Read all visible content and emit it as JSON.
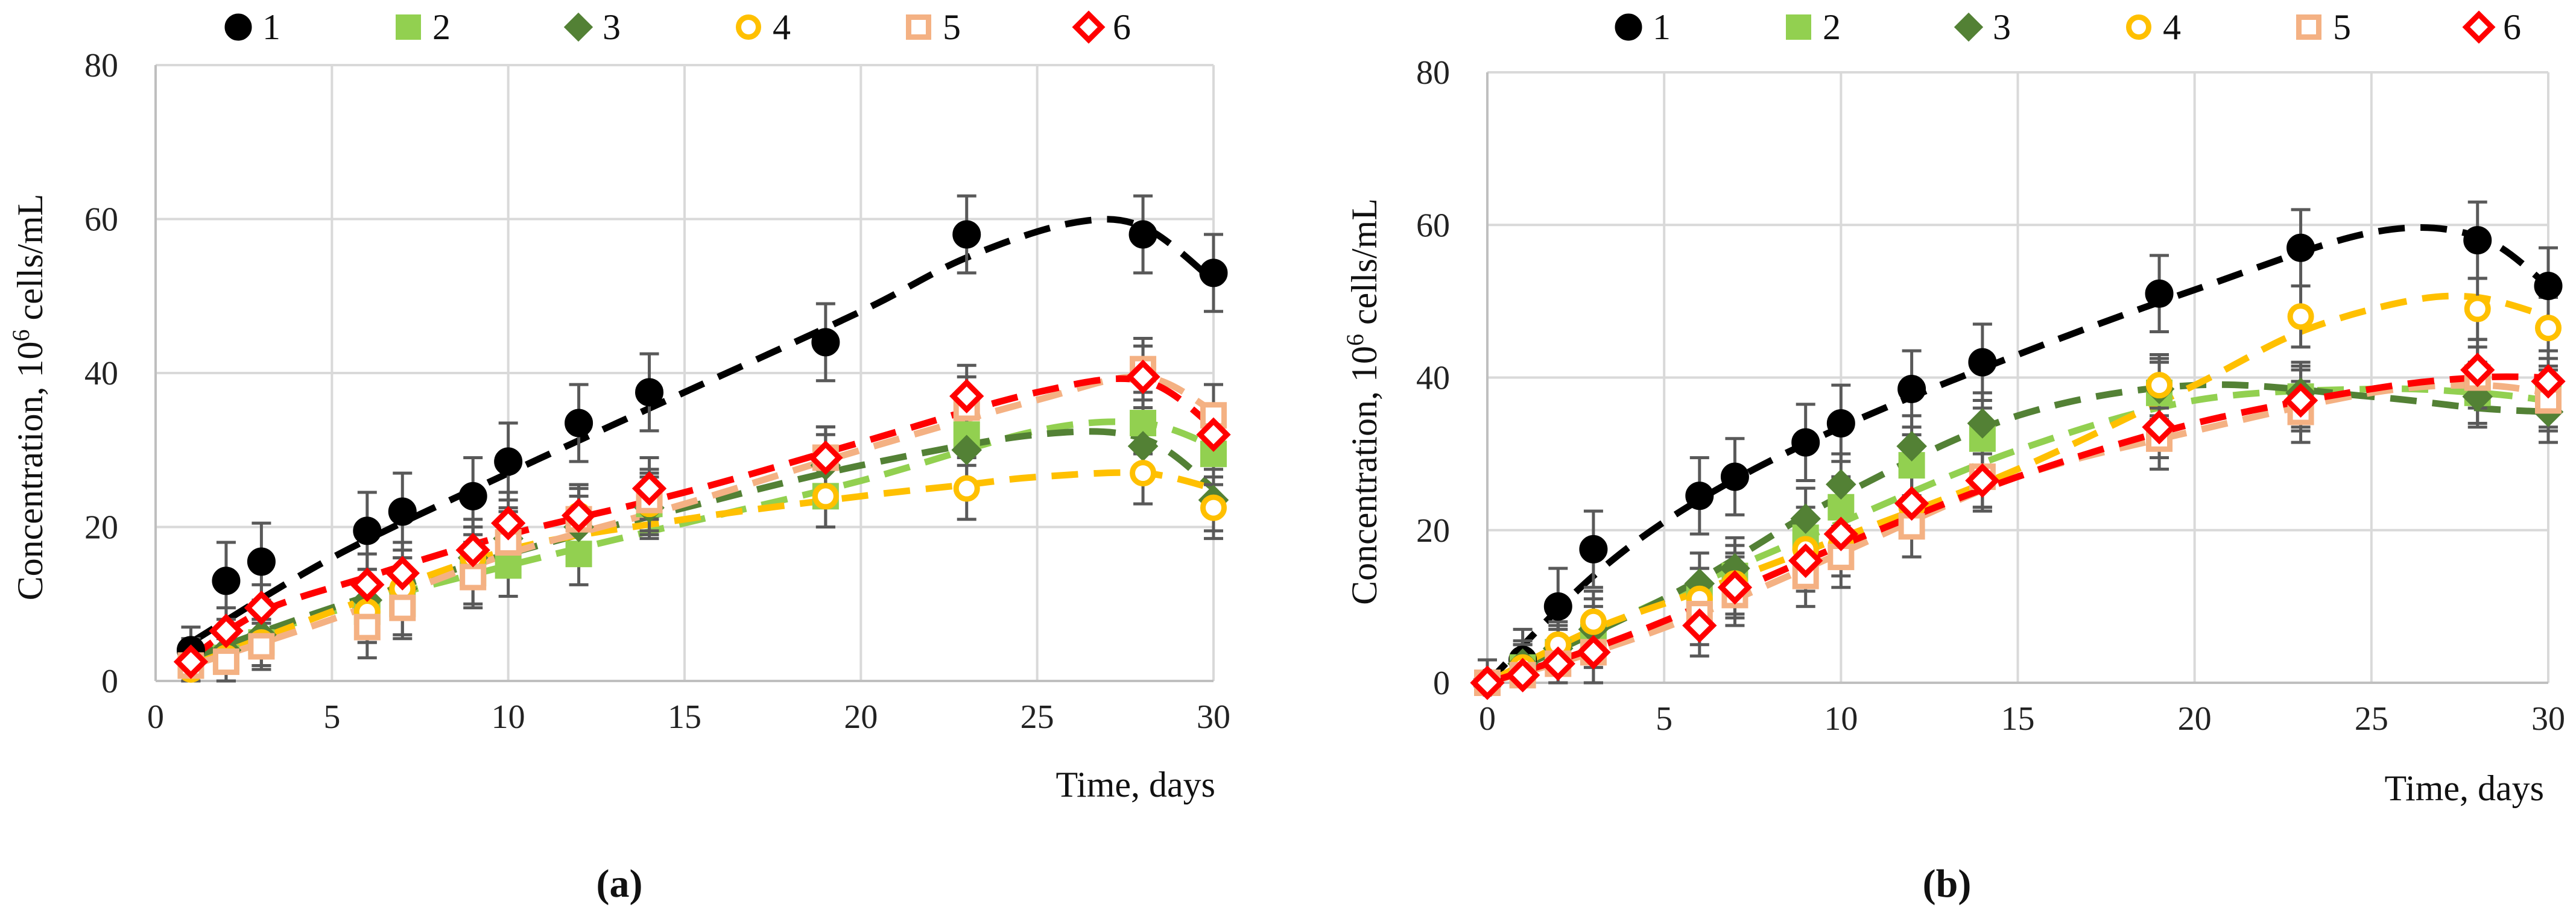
{
  "figure": {
    "panel_labels": [
      "(a)",
      "(b)"
    ]
  },
  "series_styles": [
    {
      "name": "1",
      "marker": "circle-filled",
      "color": "#000000",
      "fit_color": "#000000"
    },
    {
      "name": "2",
      "marker": "square-filled",
      "color": "#92d050",
      "fit_color": "#92d050"
    },
    {
      "name": "3",
      "marker": "diamond-filled",
      "color": "#538135",
      "fit_color": "#538135"
    },
    {
      "name": "4",
      "marker": "circle-open",
      "color": "#ffc000",
      "fit_color": "#ffc000"
    },
    {
      "name": "5",
      "marker": "square-open",
      "color": "#f4b183",
      "fit_color": "#f4b183"
    },
    {
      "name": "6",
      "marker": "diamond-open",
      "color": "#ff0000",
      "fit_color": "#ff0000"
    }
  ],
  "chart_data": [
    {
      "type": "scatter",
      "panel": "(a)",
      "title": "",
      "xlabel": "Time, days",
      "ylabel_prefix": "Concentration, 10",
      "ylabel_sup": "6",
      "ylabel_suffix": " cells/mL",
      "xlim": [
        0,
        30
      ],
      "ylim": [
        0,
        80
      ],
      "xticks": [
        0,
        5,
        10,
        15,
        20,
        25,
        30
      ],
      "yticks": [
        0,
        20,
        40,
        60,
        80
      ],
      "grid": true,
      "legend_position": "top",
      "x": [
        1,
        2,
        3,
        6,
        7,
        9,
        10,
        12,
        14,
        19,
        23,
        28,
        30
      ],
      "series": [
        {
          "name": "1",
          "values": [
            4,
            13,
            15.5,
            19.5,
            22,
            24,
            28.5,
            33.5,
            37.5,
            44,
            58,
            58,
            53
          ],
          "errors": [
            3,
            5,
            5,
            5,
            5,
            5,
            5,
            5,
            5,
            5,
            5,
            5,
            5
          ],
          "fit_x": [
            1,
            5,
            10,
            15,
            20,
            23,
            26,
            28,
            30
          ],
          "fit_y": [
            5,
            16,
            27,
            37.5,
            48,
            55,
            59.5,
            59,
            52
          ]
        },
        {
          "name": "2",
          "values": [
            2,
            3,
            5,
            9,
            10,
            14,
            15,
            16.5,
            23,
            24,
            32,
            33.5,
            29.5
          ],
          "errors": [
            3,
            3,
            3,
            4,
            4,
            4,
            4,
            4,
            4,
            4,
            4,
            4,
            4
          ],
          "fit_x": [
            1,
            5,
            10,
            15,
            20,
            25,
            28,
            30
          ],
          "fit_y": [
            3,
            9,
            15,
            20.5,
            26,
            32.5,
            33.5,
            30.5
          ]
        },
        {
          "name": "3",
          "values": [
            2.5,
            4,
            6,
            10.5,
            12,
            16,
            18.5,
            20,
            22.5,
            28,
            30,
            30.5,
            23.5
          ],
          "errors": [
            3,
            3,
            3,
            4,
            4,
            4,
            4,
            4,
            4,
            4,
            4,
            4,
            4
          ],
          "fit_x": [
            1,
            5,
            10,
            15,
            20,
            25,
            28,
            30
          ],
          "fit_y": [
            3,
            9.5,
            16.5,
            22.5,
            28,
            32,
            31.5,
            25
          ]
        },
        {
          "name": "4",
          "values": [
            1.5,
            3,
            5,
            9,
            12,
            16,
            18,
            21.5,
            23,
            24,
            25,
            27,
            22.5
          ],
          "errors": [
            3,
            3,
            3,
            4,
            4,
            4,
            4,
            4,
            4,
            4,
            4,
            4,
            4
          ],
          "fit_x": [
            1,
            5,
            10,
            15,
            20,
            23,
            25,
            28,
            30
          ],
          "fit_y": [
            2,
            9,
            17,
            21,
            24,
            25.5,
            26.5,
            27,
            25
          ]
        },
        {
          "name": "5",
          "values": [
            2,
            2.5,
            4.5,
            7,
            9.5,
            13.5,
            18,
            21,
            23.5,
            29,
            35.5,
            40.5,
            34.5
          ],
          "errors": [
            3,
            3,
            3,
            4,
            4,
            4,
            4,
            4,
            4,
            4,
            4,
            4,
            4
          ],
          "fit_x": [
            1,
            5,
            10,
            15,
            20,
            25,
            28,
            30
          ],
          "fit_y": [
            2,
            8,
            16.5,
            23,
            30,
            36.5,
            39.5,
            35
          ]
        },
        {
          "name": "6",
          "values": [
            2.5,
            6.5,
            9.5,
            12.5,
            14,
            17,
            20.5,
            21.5,
            25,
            29,
            37,
            39.5,
            32
          ],
          "errors": [
            3,
            3,
            3,
            4,
            4,
            4,
            4,
            4,
            4,
            4,
            4,
            4,
            4
          ],
          "fit_x": [
            1,
            3,
            6,
            10,
            15,
            20,
            25,
            28,
            30
          ],
          "fit_y": [
            3,
            9,
            13.5,
            19,
            24.5,
            31,
            37.5,
            39,
            33
          ]
        }
      ]
    },
    {
      "type": "scatter",
      "panel": "(b)",
      "title": "",
      "xlabel": "Time, days",
      "ylabel_prefix": "Concentration, 10",
      "ylabel_sup": "6",
      "ylabel_suffix": " cells/mL",
      "xlim": [
        0,
        30
      ],
      "ylim": [
        0,
        80
      ],
      "xticks": [
        0,
        5,
        10,
        15,
        20,
        25,
        30
      ],
      "yticks": [
        0,
        20,
        40,
        60,
        80
      ],
      "grid": true,
      "legend_position": "top",
      "x": [
        0,
        1,
        2,
        3,
        6,
        7,
        9,
        10,
        12,
        14,
        19,
        23,
        28,
        30
      ],
      "series": [
        {
          "name": "1",
          "values": [
            0,
            3,
            10,
            17.5,
            24.5,
            27,
            31.5,
            34,
            38.5,
            42,
            51,
            57,
            58,
            52
          ],
          "errors": [
            3,
            4,
            5,
            5,
            5,
            5,
            5,
            5,
            5,
            5,
            5,
            5,
            5,
            5
          ],
          "fit_x": [
            0,
            3,
            6,
            10,
            15,
            20,
            25,
            28,
            30
          ],
          "fit_y": [
            0,
            14,
            24,
            33.5,
            43,
            51.5,
            59,
            58.5,
            52
          ]
        },
        {
          "name": "2",
          "values": [
            0,
            2,
            4,
            6,
            11,
            14,
            19,
            23,
            28.5,
            32,
            38,
            37.5,
            38,
            37.5
          ],
          "errors": [
            3,
            3,
            3,
            4,
            4,
            4,
            4,
            4,
            4,
            4,
            4,
            4,
            4,
            4
          ],
          "fit_x": [
            0,
            5,
            10,
            15,
            20,
            25,
            28,
            30
          ],
          "fit_y": [
            0,
            11,
            21,
            30.5,
            37,
            38.5,
            38,
            37
          ]
        },
        {
          "name": "3",
          "values": [
            0,
            2.5,
            4.5,
            7,
            13,
            15,
            21.5,
            26,
            31,
            34,
            38.5,
            38,
            37.5,
            35.5
          ],
          "errors": [
            3,
            3,
            3,
            4,
            4,
            4,
            4,
            4,
            4,
            4,
            4,
            4,
            4,
            4
          ],
          "fit_x": [
            0,
            3,
            6,
            10,
            15,
            20,
            25,
            28,
            30
          ],
          "fit_y": [
            0,
            6.5,
            13.5,
            24.5,
            35,
            39,
            37.5,
            36,
            35.5
          ]
        },
        {
          "name": "4",
          "values": [
            0,
            2,
            5,
            8,
            11,
            13,
            17.5,
            18,
            23,
            27,
            39,
            48,
            49,
            46.5
          ],
          "errors": [
            3,
            3,
            3,
            4,
            4,
            4,
            4,
            4,
            4,
            4,
            4,
            4,
            4,
            4
          ],
          "fit_x": [
            0,
            3,
            6,
            10,
            15,
            20,
            23,
            26,
            28,
            30
          ],
          "fit_y": [
            0,
            7,
            12,
            19,
            28,
            39,
            46,
            50,
            50.5,
            48
          ]
        },
        {
          "name": "5",
          "values": [
            0,
            1,
            2.5,
            4,
            9,
            11.5,
            14,
            16.5,
            20.5,
            27,
            32,
            35.5,
            40,
            37
          ],
          "errors": [
            3,
            3,
            3,
            4,
            4,
            4,
            4,
            4,
            4,
            4,
            4,
            4,
            4,
            4
          ],
          "fit_x": [
            0,
            3,
            6,
            10,
            15,
            20,
            25,
            28,
            30
          ],
          "fit_y": [
            0,
            4,
            9,
            17,
            27,
            33,
            38,
            39,
            38
          ]
        },
        {
          "name": "6",
          "values": [
            0,
            1,
            2.5,
            4,
            7.5,
            12.5,
            16,
            19.5,
            23.5,
            26.5,
            33.5,
            37,
            41,
            39.5
          ],
          "errors": [
            3,
            3,
            3,
            4,
            4,
            4,
            4,
            4,
            4,
            4,
            4,
            4,
            4,
            4
          ],
          "fit_x": [
            0,
            3,
            6,
            10,
            15,
            20,
            25,
            28,
            30
          ],
          "fit_y": [
            0,
            4.5,
            10,
            18,
            27,
            34,
            38.5,
            40,
            40
          ]
        }
      ]
    }
  ]
}
